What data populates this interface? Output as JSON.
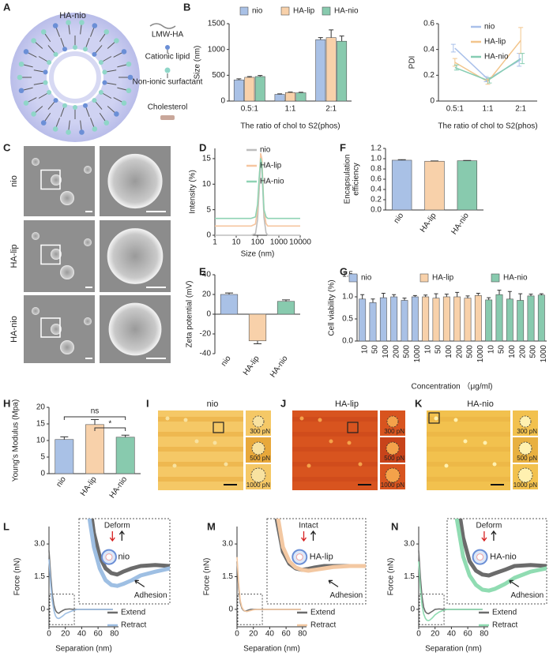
{
  "panel_labels": [
    "A",
    "B",
    "C",
    "D",
    "E",
    "F",
    "G",
    "H",
    "I",
    "J",
    "K",
    "L",
    "M",
    "N"
  ],
  "schematic": {
    "title": "HA-nio",
    "legend": [
      "LMW-HA",
      "Cationic lipid",
      "Non-ionic surfactant",
      "Cholesterol"
    ]
  },
  "micrographs": {
    "rows": [
      "nio",
      "HA-lip",
      "HA-nio"
    ]
  },
  "afm": [
    {
      "title": "nio",
      "forces": [
        "300 pN",
        "500 pN",
        "1000 pN"
      ]
    },
    {
      "title": "HA-lip",
      "forces": [
        "300 pN",
        "500 pN",
        "1000 pN"
      ]
    },
    {
      "title": "HA-nio",
      "forces": [
        "300 pN",
        "500 pN",
        "1000 pN"
      ]
    }
  ],
  "chart_data": [
    {
      "type": "bar",
      "y_label": "Size (nm)",
      "x_label": "The ratio of chol to S2(phos)",
      "categories": [
        "0.5:1",
        "1:1",
        "2:1"
      ],
      "series": [
        {
          "name": "nio",
          "color": "#a9c1e6",
          "values": [
            410,
            130,
            1190
          ],
          "errors": [
            20,
            10,
            40
          ]
        },
        {
          "name": "HA-lip",
          "color": "#f8d1aa",
          "values": [
            460,
            165,
            1230
          ],
          "errors": [
            15,
            10,
            150
          ]
        },
        {
          "name": "HA-nio",
          "color": "#88caae",
          "values": [
            475,
            160,
            1160
          ],
          "errors": [
            20,
            10,
            100
          ]
        }
      ],
      "ylim": [
        0,
        1500
      ],
      "yticks": [
        0,
        500,
        1000,
        1500
      ]
    },
    {
      "type": "line",
      "y_label": "PDI",
      "x_label": "The ratio of chol to S2(phos)",
      "categories": [
        "0.5:1",
        "1:1",
        "2:1"
      ],
      "series": [
        {
          "name": "nio",
          "color": "#a9c0ea",
          "values": [
            0.41,
            0.17,
            0.32
          ],
          "errors": [
            0.03,
            0.02,
            0.05
          ]
        },
        {
          "name": "HA-lip",
          "color": "#f2c58c",
          "values": [
            0.3,
            0.15,
            0.47
          ],
          "errors": [
            0.03,
            0.02,
            0.1
          ]
        },
        {
          "name": "HA-nio",
          "color": "#86cdb3",
          "values": [
            0.26,
            0.16,
            0.33
          ],
          "errors": [
            0.02,
            0.02,
            0.04
          ]
        }
      ],
      "ylim": [
        0,
        0.6
      ],
      "yticks": [
        0,
        0.2,
        0.4,
        0.6
      ]
    },
    {
      "type": "line",
      "y_label": "Intensity (%)",
      "x_label": "Size (nm)",
      "log_x": true,
      "x": [
        1,
        50,
        80,
        100,
        120,
        140,
        160,
        180,
        200,
        250,
        300,
        500,
        10000
      ],
      "series": [
        {
          "name": "nio",
          "color": "#bdbdbd",
          "values": [
            0,
            0,
            0.3,
            3,
            9,
            14,
            13,
            8,
            3.5,
            0.5,
            0,
            0,
            0
          ]
        },
        {
          "name": "HA-lip",
          "color": "#f6c6a0",
          "values": [
            1.8,
            1.8,
            2.2,
            5,
            11,
            16,
            15,
            10,
            5,
            2.3,
            1.8,
            1.8,
            1.8
          ]
        },
        {
          "name": "HA-nio",
          "color": "#8fd3b4",
          "values": [
            3.3,
            3.3,
            3.6,
            6,
            11.5,
            15,
            14,
            9,
            5,
            3.6,
            3.3,
            3.3,
            3.3
          ]
        }
      ],
      "xlim": [
        1,
        10000
      ],
      "xticks": [
        1,
        10,
        100,
        1000,
        10000
      ],
      "ylim": [
        0,
        17
      ],
      "yticks": [
        0,
        5,
        10,
        15
      ]
    },
    {
      "type": "bar",
      "y_label": "Zeta potential (mV)",
      "categories": [
        "nio",
        "HA-lip",
        "HA-nio"
      ],
      "values": [
        20,
        -27,
        13
      ],
      "errors": [
        1.5,
        3,
        1.5
      ],
      "colors": [
        "#a9c1e6",
        "#f8d1aa",
        "#88caae"
      ],
      "ylim": [
        -40,
        40
      ],
      "yticks": [
        -40,
        -20,
        0,
        20,
        40
      ]
    },
    {
      "type": "bar",
      "y_label": [
        "Encapsulation",
        "efficiency"
      ],
      "categories": [
        "nio",
        "HA-lip",
        "HA-nio"
      ],
      "values": [
        0.97,
        0.95,
        0.96
      ],
      "errors": [
        0.01,
        0.005,
        0.005
      ],
      "colors": [
        "#a9c1e6",
        "#f8d1aa",
        "#88caae"
      ],
      "ylim": [
        0,
        1.2
      ],
      "yticks": [
        {
          "value": 0,
          "label": "0.0"
        },
        {
          "value": 0.2,
          "label": "0.2"
        },
        {
          "value": 0.4,
          "label": "0.4"
        },
        {
          "value": 0.6,
          "label": "0.6"
        },
        {
          "value": 0.8,
          "label": "0.8"
        },
        {
          "value": 1,
          "label": "1.0"
        },
        {
          "value": 1.2,
          "label": "1.2"
        }
      ]
    },
    {
      "type": "bar",
      "y_label": "Cell viability  (%)",
      "x_label": "Concentration （μg/ml)",
      "categories": [
        "10",
        "50",
        "100",
        "200",
        "500",
        "1000"
      ],
      "series": [
        {
          "name": "nio",
          "color": "#a9c1e6",
          "values": [
            0.95,
            0.87,
            0.98,
            1.0,
            0.92,
            1.0
          ],
          "errors": [
            0.1,
            0.08,
            0.1,
            0.05,
            0.05,
            0.03
          ]
        },
        {
          "name": "HA-lip",
          "color": "#f8d1aa",
          "values": [
            1.0,
            0.97,
            1.0,
            1.0,
            0.97,
            1.03
          ],
          "errors": [
            0.04,
            0.1,
            0.06,
            0.1,
            0.05,
            0.05
          ]
        },
        {
          "name": "HA-nio",
          "color": "#88caae",
          "values": [
            0.93,
            1.05,
            0.95,
            0.92,
            1.02,
            1.04
          ],
          "errors": [
            0.05,
            0.1,
            0.17,
            0.15,
            0.04,
            0.03
          ]
        }
      ],
      "ylim": [
        0,
        1.5
      ],
      "yticks": [
        {
          "value": 0,
          "label": "0.0"
        },
        {
          "value": 0.5,
          "label": "0.5"
        },
        {
          "value": 1,
          "label": "1.0"
        },
        {
          "value": 1.5,
          "label": "1.5"
        }
      ]
    },
    {
      "type": "bar",
      "y_label": "Young's Modulus (Mpa)",
      "categories": [
        "nio",
        "HA-lip",
        "HA-nio"
      ],
      "values": [
        10.3,
        14.8,
        11.0
      ],
      "errors": [
        0.8,
        1.5,
        0.6
      ],
      "colors": [
        "#a9c1e6",
        "#f8d1aa",
        "#88caae"
      ],
      "annotations": [
        "ns",
        "*"
      ],
      "ylim": [
        0,
        20
      ],
      "yticks": [
        0,
        5,
        10,
        15,
        20
      ]
    },
    {
      "type": "line",
      "y_label": "Force (nN)",
      "x_label": "Separation (nm)",
      "x": [
        0,
        2,
        4,
        6,
        8,
        10,
        12,
        14,
        17,
        20,
        25,
        30,
        35,
        40,
        50,
        60,
        70,
        78
      ],
      "series": [
        {
          "name": "Extend",
          "color": "#6b6b6b",
          "values": [
            2.7,
            1.6,
            0.7,
            0.2,
            -0.05,
            -0.15,
            -0.18,
            -0.12,
            -0.05,
            0,
            0.02,
            0,
            0,
            0,
            0,
            0,
            0,
            0
          ]
        },
        {
          "name": "Retract",
          "color": "#9ebfe3",
          "values": [
            2.3,
            1.2,
            0.4,
            -0.05,
            -0.3,
            -0.4,
            -0.42,
            -0.38,
            -0.3,
            -0.2,
            -0.12,
            -0.05,
            0,
            0,
            0,
            0,
            0,
            0
          ]
        }
      ],
      "annotations": [
        "Deform",
        "nio",
        "Adhesion"
      ],
      "xlim": [
        0,
        85
      ],
      "xticks": [
        0,
        20,
        40,
        60,
        80
      ],
      "ylim": [
        -0.8,
        3.8
      ],
      "yticks": [
        0,
        1.5,
        {
          "value": 3,
          "label": "3.0"
        }
      ]
    },
    {
      "type": "line",
      "y_label": "Force (nN)",
      "x_label": "Separation (nm)",
      "x": [
        0,
        2,
        4,
        6,
        8,
        10,
        12,
        14,
        17,
        20,
        25,
        30,
        35,
        40,
        50,
        60,
        70,
        78
      ],
      "series": [
        {
          "name": "Extend",
          "color": "#6b6b6b",
          "values": [
            2.2,
            1.0,
            0.3,
            0.05,
            -0.05,
            -0.08,
            -0.06,
            -0.03,
            0,
            0,
            0,
            0,
            0,
            0,
            0,
            0,
            0,
            0
          ]
        },
        {
          "name": "Retract",
          "color": "#f3c8a2",
          "values": [
            2.4,
            1.2,
            0.4,
            0.1,
            -0.03,
            -0.08,
            -0.1,
            -0.08,
            -0.05,
            -0.02,
            0,
            0,
            0,
            0,
            0,
            0,
            0,
            0
          ]
        }
      ],
      "annotations": [
        "Intact",
        "HA-lip",
        "Adhesion"
      ],
      "xlim": [
        0,
        85
      ],
      "xticks": [
        0,
        20,
        40,
        60,
        80
      ],
      "ylim": [
        -0.8,
        3.8
      ],
      "yticks": [
        0,
        1.5,
        {
          "value": 3,
          "label": "3.0"
        }
      ]
    },
    {
      "type": "line",
      "y_label": "Force (nN)",
      "x_label": "Separation (nm)",
      "x": [
        0,
        2,
        4,
        6,
        8,
        10,
        12,
        14,
        17,
        20,
        25,
        30,
        35,
        40,
        50,
        60,
        70,
        78
      ],
      "series": [
        {
          "name": "Extend",
          "color": "#6b6b6b",
          "values": [
            2.7,
            1.5,
            0.6,
            0.1,
            -0.1,
            -0.18,
            -0.2,
            -0.15,
            -0.08,
            0,
            0.02,
            0,
            0,
            0,
            0,
            0,
            0,
            0
          ]
        },
        {
          "name": "Retract",
          "color": "#90dcb2",
          "values": [
            2.2,
            1.0,
            0.2,
            -0.2,
            -0.4,
            -0.5,
            -0.52,
            -0.48,
            -0.38,
            -0.25,
            -0.12,
            -0.05,
            0,
            0,
            0,
            0,
            0,
            0
          ]
        }
      ],
      "annotations": [
        "Deform",
        "HA-nio",
        "Adhesion"
      ],
      "xlim": [
        0,
        85
      ],
      "xticks": [
        0,
        20,
        40,
        60,
        80
      ],
      "ylim": [
        -0.8,
        3.8
      ],
      "yticks": [
        0,
        1.5,
        {
          "value": 3,
          "label": "3.0"
        }
      ]
    }
  ]
}
